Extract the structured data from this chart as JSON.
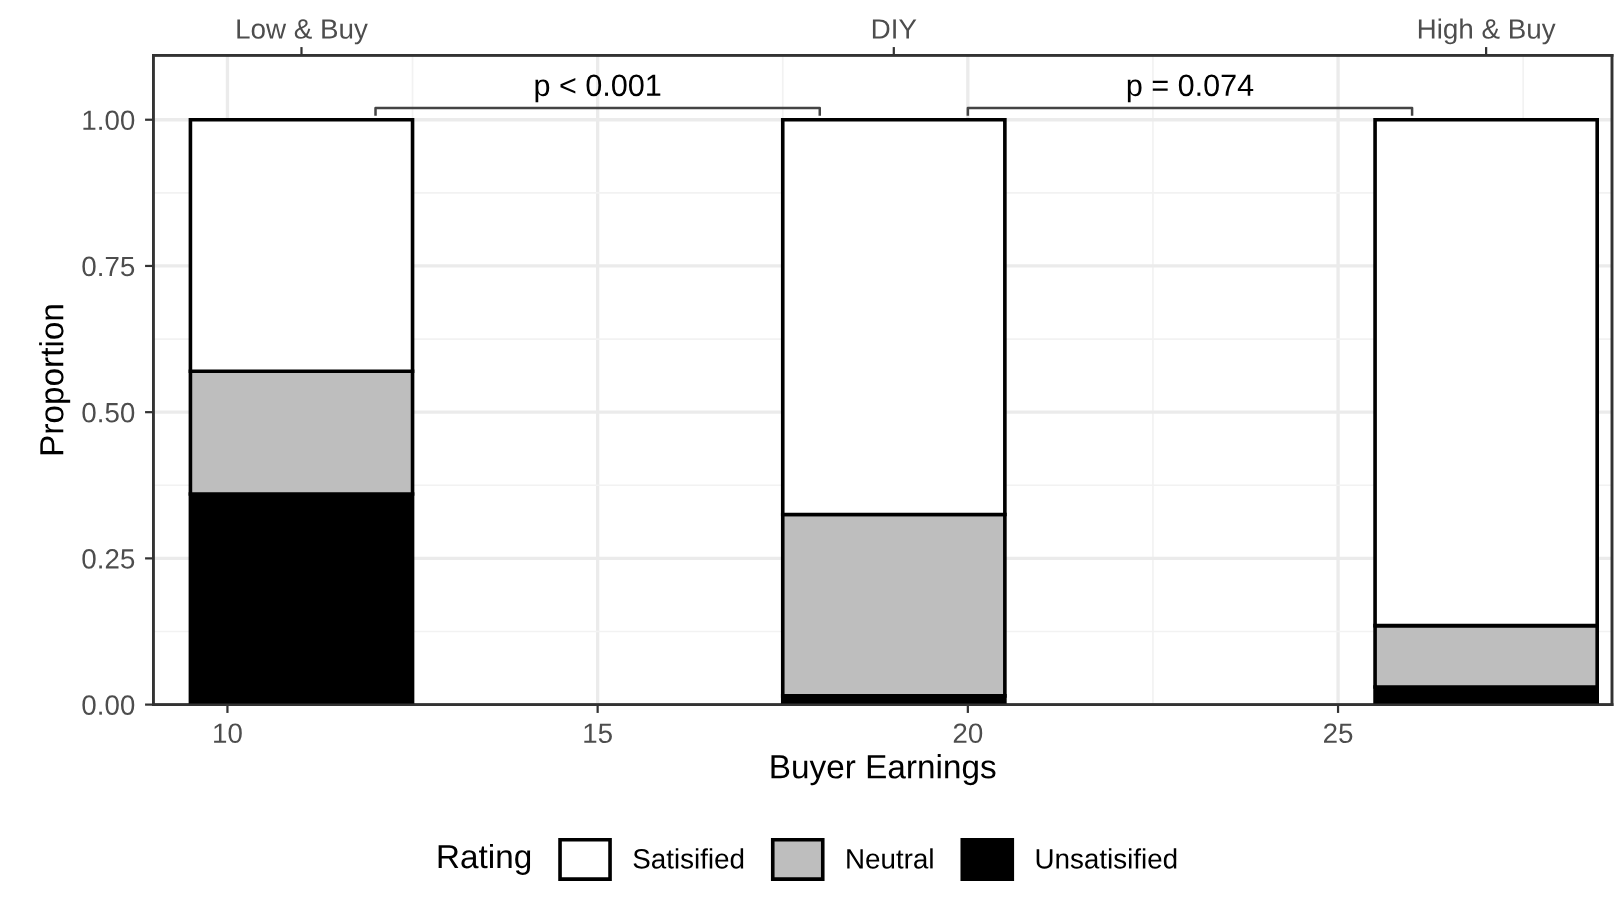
{
  "chart_data": {
    "type": "bar",
    "stacked": true,
    "xlabel": "Buyer Earnings",
    "ylabel": "Proportion",
    "legend_title": "Rating",
    "x": [
      11,
      19,
      27
    ],
    "series": [
      {
        "name": "Unsatisified",
        "color": "#000000",
        "values": [
          0.36,
          0.015,
          0.03
        ]
      },
      {
        "name": "Neutral",
        "color": "#bebebe",
        "values": [
          0.21,
          0.31,
          0.105
        ]
      },
      {
        "name": "Satisified",
        "color": "#ffffff",
        "values": [
          0.43,
          0.675,
          0.865
        ]
      }
    ],
    "xlim": [
      9.0,
      28.7
    ],
    "xticks": [
      10,
      15,
      20,
      25
    ],
    "ylim": [
      0,
      1.11
    ],
    "yticks": [
      {
        "value": 0,
        "label": "0.00"
      },
      {
        "value": 0.25,
        "label": "0.25"
      },
      {
        "value": 0.5,
        "label": "0.50"
      },
      {
        "value": 0.75,
        "label": "0.75"
      },
      {
        "value": 1,
        "label": "1.00"
      }
    ],
    "annotations": [
      "Low & Buy",
      "DIY",
      "High & Buy",
      "p < 0.001",
      "p = 0.074"
    ],
    "grid": true,
    "legend": "bottom"
  }
}
